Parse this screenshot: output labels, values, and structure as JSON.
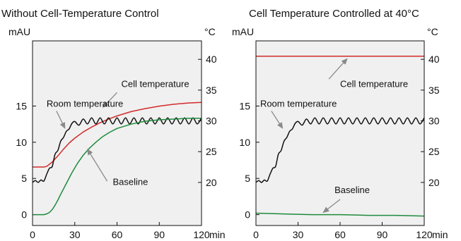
{
  "colors": {
    "cell": "#d22b2b",
    "room": "#111111",
    "baseline": "#1e8a3c",
    "frame": "#111111",
    "arrow": "#8a8a8a",
    "plot_bg": "#f0f0f0"
  },
  "chart_data": [
    {
      "type": "line",
      "title": "Without Cell-Temperature Control",
      "x_unit": "min",
      "y_left_unit": "mAU",
      "y_right_unit": "°C",
      "xlim": [
        0,
        120
      ],
      "y_left_lim": [
        -1.5,
        24
      ],
      "y_right_lim": [
        13,
        43
      ],
      "x_ticks": [
        0,
        30,
        60,
        90,
        120
      ],
      "y_left_ticks": [
        0,
        5,
        10,
        15
      ],
      "y_right_ticks": [
        20,
        25,
        30,
        35,
        40
      ],
      "grid": false,
      "series": [
        {
          "name": "Cell temperature",
          "axis": "right",
          "color": "#d22b2b",
          "x": [
            0,
            8,
            10,
            14,
            18,
            22,
            26,
            30,
            36,
            42,
            48,
            54,
            60,
            70,
            80,
            90,
            100,
            110,
            120
          ],
          "y": [
            22.5,
            22.5,
            22.6,
            23.3,
            24.3,
            25.4,
            26.4,
            27.2,
            28.2,
            29.0,
            29.7,
            30.3,
            30.8,
            31.5,
            32.0,
            32.4,
            32.7,
            32.9,
            33.0
          ]
        },
        {
          "name": "Room temperature",
          "axis": "right",
          "color": "#111111",
          "x": [
            0,
            2,
            4,
            6,
            8,
            10,
            12,
            14,
            16,
            18,
            20,
            22,
            24,
            26,
            28,
            30,
            33,
            36,
            39,
            42,
            45,
            48,
            51,
            54,
            57,
            60,
            63,
            66,
            69,
            72,
            75,
            78,
            81,
            84,
            87,
            90,
            93,
            96,
            99,
            102,
            105,
            108,
            111,
            114,
            117,
            120
          ],
          "y": [
            20.0,
            20.3,
            20.0,
            20.4,
            20.2,
            21.3,
            22.3,
            22.6,
            24.6,
            25.2,
            26.7,
            27.3,
            28.3,
            28.7,
            29.6,
            29.9,
            29.3,
            30.3,
            29.5,
            30.5,
            29.5,
            30.5,
            29.5,
            30.5,
            29.5,
            30.5,
            29.5,
            30.5,
            29.5,
            30.5,
            29.5,
            30.5,
            29.5,
            30.5,
            29.5,
            30.5,
            29.5,
            30.5,
            29.5,
            30.5,
            29.5,
            30.5,
            29.5,
            30.5,
            29.5,
            30.5
          ]
        },
        {
          "name": "Baseline",
          "axis": "left",
          "color": "#1e8a3c",
          "x": [
            0,
            8,
            10,
            12,
            14,
            16,
            18,
            20,
            24,
            28,
            32,
            36,
            40,
            45,
            50,
            55,
            60,
            70,
            80,
            90,
            100,
            110,
            120
          ],
          "y": [
            0,
            0,
            0.1,
            0.3,
            0.7,
            1.3,
            2.0,
            2.8,
            4.3,
            5.8,
            7.1,
            8.2,
            9.1,
            10.0,
            10.8,
            11.4,
            11.9,
            12.5,
            12.9,
            13.1,
            13.2,
            13.3,
            13.3
          ]
        }
      ],
      "annotations": [
        {
          "text": "Cell temperature",
          "label_at": [
            63,
            35.5
          ],
          "arrow_from": [
            60,
            34.6
          ],
          "arrow_to": [
            50,
            32.2
          ]
        },
        {
          "text": "Room temperature",
          "label_at": [
            10,
            32.3
          ],
          "arrow_from": [
            17,
            31.6
          ],
          "arrow_to": [
            23,
            28.8
          ]
        },
        {
          "text": "Baseline",
          "label_at": [
            57,
            19.6
          ],
          "arrow_from": [
            53,
            20.2
          ],
          "arrow_to": [
            39,
            25.4
          ]
        }
      ]
    },
    {
      "type": "line",
      "title": "Cell Temperature Controlled at 40°C",
      "x_unit": "min",
      "y_left_unit": "mAU",
      "y_right_unit": "°C",
      "xlim": [
        0,
        120
      ],
      "y_left_lim": [
        -1.5,
        24
      ],
      "y_right_lim": [
        13,
        43
      ],
      "x_ticks": [
        0,
        30,
        60,
        90,
        120
      ],
      "y_left_ticks": [
        0,
        5,
        10,
        15
      ],
      "y_right_ticks": [
        20,
        25,
        30,
        35,
        40
      ],
      "grid": false,
      "series": [
        {
          "name": "Cell temperature",
          "axis": "right",
          "color": "#d22b2b",
          "x": [
            0,
            120
          ],
          "y": [
            40.5,
            40.5
          ]
        },
        {
          "name": "Room temperature",
          "axis": "right",
          "color": "#111111",
          "x": [
            0,
            2,
            4,
            6,
            8,
            10,
            12,
            14,
            16,
            18,
            20,
            22,
            24,
            26,
            28,
            30,
            33,
            36,
            39,
            42,
            45,
            48,
            51,
            54,
            57,
            60,
            63,
            66,
            69,
            72,
            75,
            78,
            81,
            84,
            87,
            90,
            93,
            96,
            99,
            102,
            105,
            108,
            111,
            114,
            117,
            120
          ],
          "y": [
            20.0,
            20.3,
            20.0,
            20.4,
            20.2,
            21.3,
            22.3,
            22.6,
            24.6,
            25.2,
            26.7,
            27.3,
            28.3,
            28.7,
            29.6,
            29.9,
            29.3,
            30.3,
            29.5,
            30.5,
            29.5,
            30.5,
            29.5,
            30.5,
            29.5,
            30.5,
            29.5,
            30.5,
            29.5,
            30.5,
            29.5,
            30.5,
            29.5,
            30.5,
            29.5,
            30.5,
            29.5,
            30.5,
            29.5,
            30.5,
            29.5,
            30.5,
            29.5,
            30.5,
            29.5,
            30.5
          ]
        },
        {
          "name": "Baseline",
          "axis": "left",
          "color": "#1e8a3c",
          "x": [
            0,
            20,
            40,
            60,
            80,
            100,
            120
          ],
          "y": [
            0.2,
            0.1,
            0.0,
            0.0,
            -0.1,
            -0.1,
            -0.2
          ]
        }
      ],
      "annotations": [
        {
          "text": "Cell temperature",
          "label_at": [
            60,
            35.5
          ],
          "arrow_from": [
            52,
            36.8
          ],
          "arrow_to": [
            65,
            40.1
          ]
        },
        {
          "text": "Room temperature",
          "label_at": [
            3,
            32.3
          ],
          "arrow_from": [
            11,
            31.6
          ],
          "arrow_to": [
            19,
            28.8
          ]
        },
        {
          "text": "Baseline",
          "label_at": [
            56,
            3.0
          ],
          "arrow_from": [
            60,
            2.1
          ],
          "arrow_to": [
            48,
            0.3
          ]
        }
      ]
    }
  ]
}
